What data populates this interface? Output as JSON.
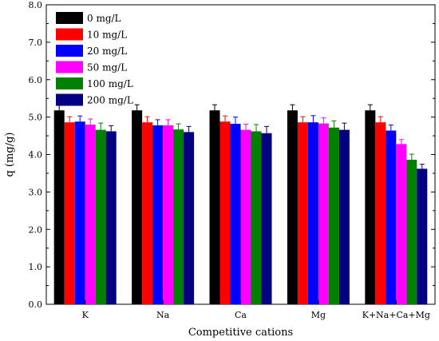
{
  "chart_data": {
    "type": "bar",
    "xlabel": "Competitive cations",
    "ylabel": "q (mg/g)",
    "ylim": [
      0,
      8.0
    ],
    "yticks": [
      "0.0",
      "1.0",
      "2.0",
      "3.0",
      "4.0",
      "5.0",
      "6.0",
      "7.0",
      "8.0"
    ],
    "categories": [
      "K",
      "Na",
      "Ca",
      "Mg",
      "K+Na+Ca+Mg"
    ],
    "legend_position": "top-left",
    "grid": false,
    "series": [
      {
        "name": "0 mg/L",
        "color": "#000000",
        "values": [
          5.18,
          5.18,
          5.18,
          5.18,
          5.18
        ],
        "errors": [
          0.15,
          0.15,
          0.15,
          0.15,
          0.15
        ]
      },
      {
        "name": "10 mg/L",
        "color": "#ff0000",
        "values": [
          4.86,
          4.86,
          4.88,
          4.86,
          4.86
        ],
        "errors": [
          0.15,
          0.15,
          0.15,
          0.15,
          0.15
        ]
      },
      {
        "name": "20 mg/L",
        "color": "#0000ff",
        "values": [
          4.88,
          4.78,
          4.82,
          4.86,
          4.64
        ],
        "errors": [
          0.15,
          0.15,
          0.18,
          0.18,
          0.15
        ]
      },
      {
        "name": "50 mg/L",
        "color": "#ff00ff",
        "values": [
          4.8,
          4.78,
          4.66,
          4.83,
          4.28
        ],
        "errors": [
          0.15,
          0.15,
          0.15,
          0.15,
          0.12
        ]
      },
      {
        "name": "100 mg/L",
        "color": "#008000",
        "values": [
          4.66,
          4.67,
          4.62,
          4.72,
          3.86
        ],
        "errors": [
          0.18,
          0.15,
          0.18,
          0.18,
          0.15
        ]
      },
      {
        "name": "200 mg/L",
        "color": "#000080",
        "values": [
          4.62,
          4.6,
          4.57,
          4.66,
          3.62
        ],
        "errors": [
          0.15,
          0.15,
          0.18,
          0.18,
          0.12
        ]
      }
    ]
  }
}
